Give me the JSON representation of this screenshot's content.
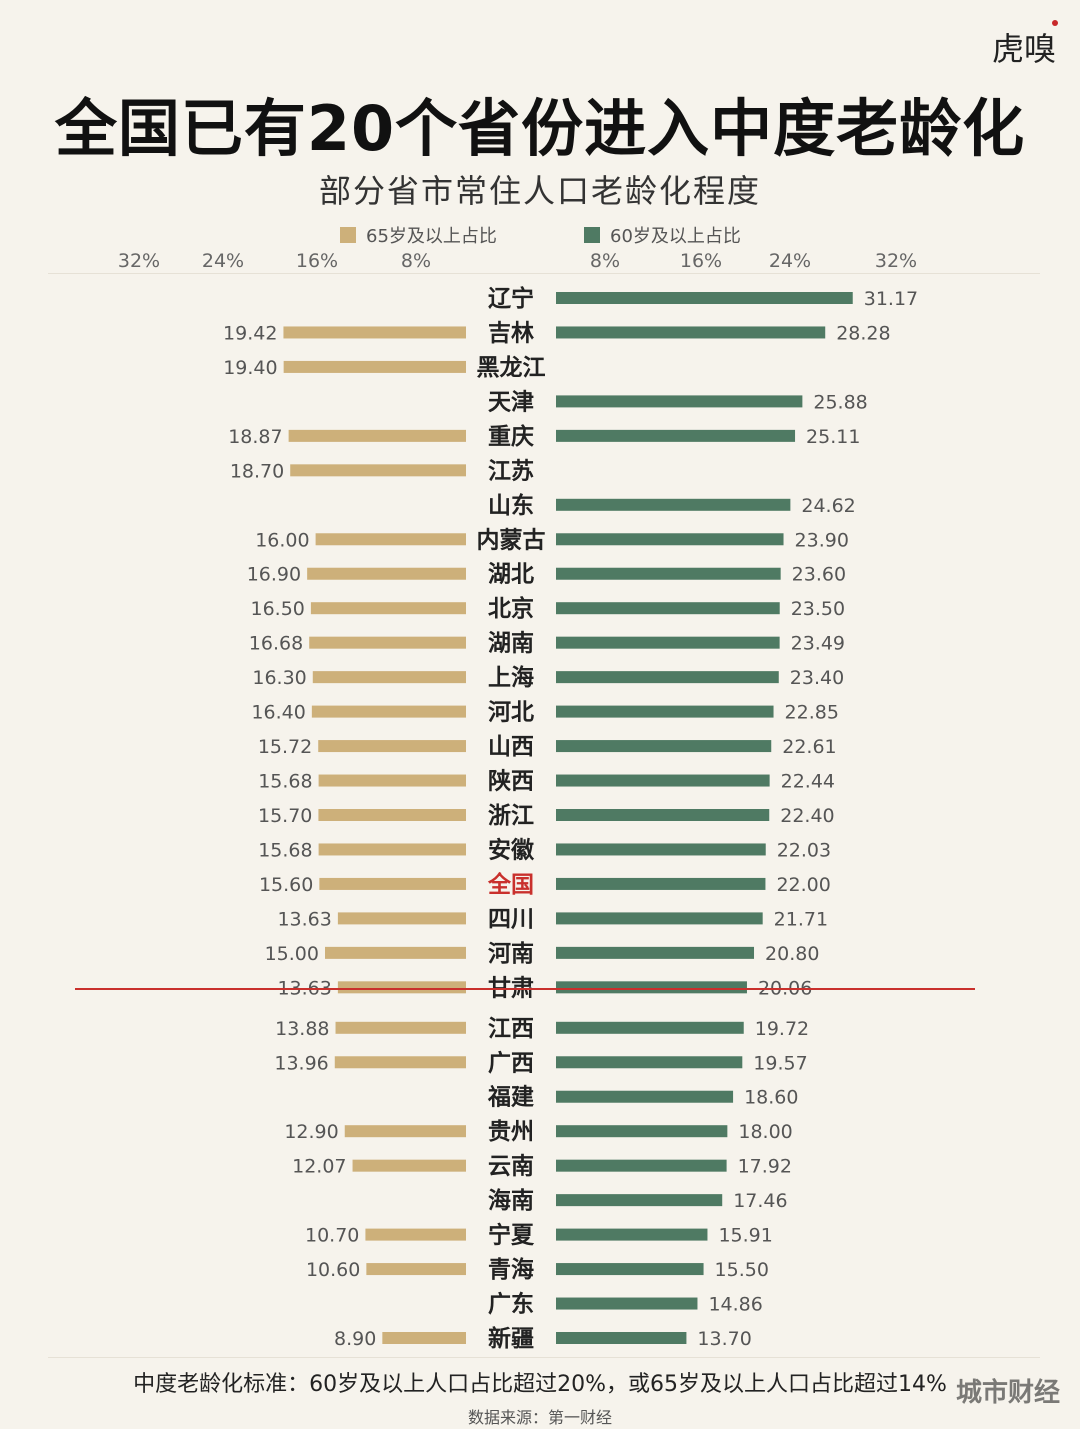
{
  "logo": "虎嗅",
  "watermark": "城市财经",
  "chart_data": {
    "type": "bar",
    "title": "全国已有20个省份进入中度老龄化",
    "subtitle": "部分省市常住人口老龄化程度",
    "legend": [
      {
        "name": "65岁及以上占比",
        "color": "#cdb07a"
      },
      {
        "name": "60岁及以上占比",
        "color": "#4f7a63"
      }
    ],
    "left_ticks": [
      "32%",
      "24%",
      "16%",
      "8%"
    ],
    "right_ticks": [
      "8%",
      "16%",
      "24%",
      "32%"
    ],
    "categories": [
      "辽宁",
      "吉林",
      "黑龙江",
      "天津",
      "重庆",
      "江苏",
      "山东",
      "内蒙古",
      "湖北",
      "北京",
      "湖南",
      "上海",
      "河北",
      "山西",
      "陕西",
      "浙江",
      "安徽",
      "全国",
      "四川",
      "河南",
      "甘肃",
      "江西",
      "广西",
      "福建",
      "贵州",
      "云南",
      "海南",
      "宁夏",
      "青海",
      "广东",
      "新疆"
    ],
    "series": [
      {
        "name": "65岁及以上占比",
        "values": [
          null,
          "19.42",
          "19.40",
          null,
          "18.87",
          "18.70",
          null,
          "16.00",
          "16.90",
          "16.50",
          "16.68",
          "16.30",
          "16.40",
          "15.72",
          "15.68",
          "15.70",
          "15.68",
          "15.60",
          "13.63",
          "15.00",
          "13.63",
          "13.88",
          "13.96",
          null,
          "12.90",
          "12.07",
          null,
          "10.70",
          "10.60",
          null,
          "8.90"
        ]
      },
      {
        "name": "60岁及以上占比",
        "values": [
          "31.17",
          "28.28",
          null,
          "25.88",
          "25.11",
          null,
          "24.62",
          "23.90",
          "23.60",
          "23.50",
          "23.49",
          "23.40",
          "22.85",
          "22.61",
          "22.44",
          "22.40",
          "22.03",
          "22.00",
          "21.71",
          "20.80",
          "20.06",
          "19.72",
          "19.57",
          "18.60",
          "18.00",
          "17.92",
          "17.46",
          "15.91",
          "15.50",
          "14.86",
          "13.70"
        ]
      }
    ],
    "highlight_category": "全国",
    "highlight_color": "#c9302c",
    "threshold_after": "甘肃"
  },
  "footer": {
    "note": "中度老龄化标准：60岁及以上人口占比超过20%，或65岁及以上人口占比超过14%",
    "source": "数据来源：第一财经"
  }
}
